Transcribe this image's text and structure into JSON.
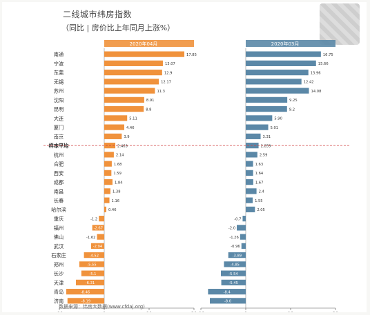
{
  "header": {
    "title": "二线城市纬房指数",
    "subtitle": "（同比 | 房价比上年同月上涨%）"
  },
  "footer": {
    "source": "数据来源：纬房大数据(www.cfdaj.org)"
  },
  "chart_data": [
    {
      "type": "bar",
      "orientation": "horizontal",
      "title": "2020年04月",
      "bar_color": "#f0923c",
      "xlim": [
        -10,
        20
      ],
      "xticks": [
        "-10",
        "0",
        "10",
        "20"
      ],
      "categories": [
        "南通",
        "宁波",
        "东莞",
        "无锡",
        "苏州",
        "沈阳",
        "昆明",
        "大连",
        "厦门",
        "南京",
        "样本平均",
        "杭州",
        "合肥",
        "西安",
        "成都",
        "南昌",
        "长春",
        "哈尔滨",
        "重庆",
        "福州",
        "佛山",
        "武汉",
        "石家庄",
        "郑州",
        "长沙",
        "天津",
        "青岛",
        "济南"
      ],
      "values": [
        17.85,
        13.07,
        12.9,
        12.17,
        11.3,
        8.91,
        8.8,
        5.11,
        4.46,
        3.9,
        2.469,
        2.14,
        1.68,
        1.59,
        1.84,
        1.38,
        1.16,
        0.46,
        -1.2,
        -2.67,
        -1.62,
        -2.94,
        -4.52,
        -5.55,
        -5.1,
        -6.31,
        -8.46,
        -8.19
      ],
      "value_labels": [
        "17.85",
        "13.07",
        "12.9",
        "12.17",
        "11.3",
        "8.91",
        "8.8",
        "5.11",
        "4.46",
        "3.9",
        "2.469",
        "2.14",
        "1.68",
        "1.59",
        "1.84",
        "1.38",
        "1.16",
        "0.46",
        "-1.2",
        "-2.67",
        "-1.62",
        "-2.94",
        "-4.52",
        "-5.55",
        "-5.1",
        "-6.31",
        "-8.46",
        "-8.19"
      ],
      "reference_category": "样本平均"
    },
    {
      "type": "bar",
      "orientation": "horizontal",
      "title": "2020年03月",
      "bar_color": "#5b88a7",
      "xlim": [
        -10,
        20
      ],
      "xticks": [
        "-10",
        "0",
        "10",
        "20"
      ],
      "categories": [
        "南通",
        "宁波",
        "东莞",
        "无锡",
        "苏州",
        "沈阳",
        "昆明",
        "大连",
        "厦门",
        "南京",
        "样本平均",
        "杭州",
        "合肥",
        "西安",
        "成都",
        "南昌",
        "长春",
        "哈尔滨",
        "重庆",
        "福州",
        "佛山",
        "武汉",
        "石家庄",
        "郑州",
        "长沙",
        "天津",
        "青岛",
        "济南"
      ],
      "values": [
        16.75,
        15.66,
        13.96,
        12.42,
        14.08,
        9.25,
        9.2,
        5.9,
        5.01,
        3.31,
        2.859,
        2.59,
        1.63,
        1.64,
        1.67,
        2.4,
        1.55,
        2.05,
        -0.7,
        -2.0,
        -1.26,
        -0.96,
        -3.89,
        -4.85,
        -5.54,
        -5.45,
        -8.4,
        -8.0
      ],
      "value_labels": [
        "16.75",
        "15.66",
        "13.96",
        "12.42",
        "14.08",
        "9.25",
        "9.2",
        "5.90",
        "5.01",
        "3.31",
        "2.859",
        "2.59",
        "1.63",
        "1.64",
        "1.67",
        "2.4",
        "1.55",
        "2.05",
        "-0.7",
        "-2.0",
        "-1.26",
        "-0.96",
        "-3.89",
        "-4.85",
        "-5.54",
        "-5.45",
        "-8.4",
        "-8.0"
      ],
      "reference_category": "样本平均"
    }
  ]
}
